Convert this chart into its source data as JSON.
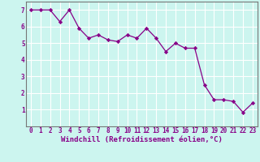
{
  "x": [
    0,
    1,
    2,
    3,
    4,
    5,
    6,
    7,
    8,
    9,
    10,
    11,
    12,
    13,
    14,
    15,
    16,
    17,
    18,
    19,
    20,
    21,
    22,
    23
  ],
  "y": [
    7.0,
    7.0,
    7.0,
    6.3,
    7.0,
    5.9,
    5.3,
    5.5,
    5.2,
    5.1,
    5.5,
    5.3,
    5.9,
    5.3,
    4.5,
    5.0,
    4.7,
    4.7,
    2.5,
    1.6,
    1.6,
    1.5,
    0.85,
    1.4
  ],
  "line_color": "#880088",
  "marker_color": "#880088",
  "background_color": "#ccf5ef",
  "grid_color": "#aadddd",
  "xlabel": "Windchill (Refroidissement éolien,°C)",
  "ylim": [
    0,
    7.5
  ],
  "xlim": [
    -0.5,
    23.5
  ],
  "yticks": [
    1,
    2,
    3,
    4,
    5,
    6,
    7
  ],
  "xticks": [
    0,
    1,
    2,
    3,
    4,
    5,
    6,
    7,
    8,
    9,
    10,
    11,
    12,
    13,
    14,
    15,
    16,
    17,
    18,
    19,
    20,
    21,
    22,
    23
  ],
  "tick_color": "#880088",
  "label_color": "#880088",
  "spine_color": "#777777",
  "label_fontsize": 6.5,
  "tick_fontsize": 5.5
}
